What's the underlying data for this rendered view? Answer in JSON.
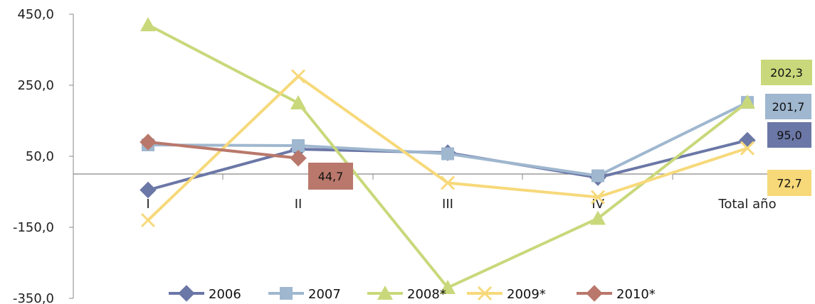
{
  "chart_data": {
    "type": "line",
    "categories": [
      "I",
      "II",
      "III",
      "IV",
      "Total año"
    ],
    "ylim": [
      -350,
      450
    ],
    "y_ticks": [
      "450,0",
      "250,0",
      "50,0",
      "-150,0",
      "-350,0"
    ],
    "y_tick_values": [
      450,
      250,
      50,
      -150,
      -350
    ],
    "grid": false,
    "legend_position": "bottom",
    "series": [
      {
        "name": "2006",
        "values": [
          -45,
          70,
          60,
          -10,
          95
        ],
        "color": "#6b77a6",
        "marker": "diamond"
      },
      {
        "name": "2007",
        "values": [
          82,
          80,
          57,
          -5,
          201.7
        ],
        "color": "#9fb7cf",
        "marker": "square"
      },
      {
        "name": "2008*",
        "values": [
          420,
          200,
          -320,
          -125,
          202.3
        ],
        "color": "#c9d87a",
        "marker": "triangle"
      },
      {
        "name": "2009*",
        "values": [
          -130,
          275,
          -25,
          -65,
          72.7
        ],
        "color": "#f7d97a",
        "marker": "x"
      },
      {
        "name": "2010*",
        "values": [
          90,
          44.7,
          null,
          null,
          null
        ],
        "color": "#b9786b",
        "marker": "diamond"
      }
    ],
    "data_labels": [
      {
        "text": "202,3",
        "series": "2008*",
        "color": "#c9d87a"
      },
      {
        "text": "201,7",
        "series": "2007",
        "color": "#9fb7cf"
      },
      {
        "text": "95,0",
        "series": "2006",
        "color": "#6b77a6"
      },
      {
        "text": "72,7",
        "series": "2009*",
        "color": "#f7d97a"
      },
      {
        "text": "44,7",
        "series": "2010*",
        "color": "#b9786b"
      }
    ]
  }
}
